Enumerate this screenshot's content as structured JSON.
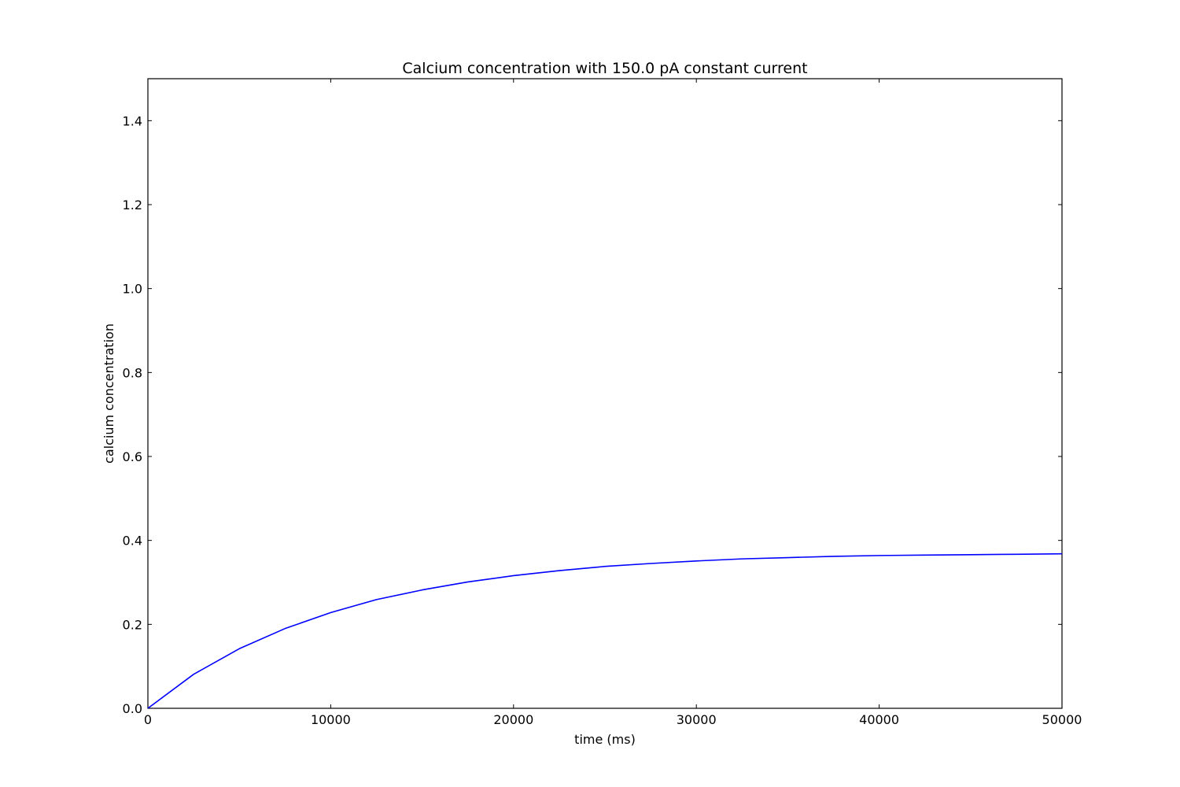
{
  "chart_data": {
    "type": "line",
    "title": "Calcium concentration with 150.0 pA constant current",
    "xlabel": "time (ms)",
    "ylabel": "calcium concentration",
    "xlim": [
      0,
      50000
    ],
    "ylim": [
      0,
      1.5
    ],
    "x_ticks": [
      0,
      10000,
      20000,
      30000,
      40000,
      50000
    ],
    "x_tick_labels": [
      "0",
      "10000",
      "20000",
      "30000",
      "40000",
      "50000"
    ],
    "y_ticks": [
      0,
      0.2,
      0.4,
      0.6,
      0.8,
      1.0,
      1.2,
      1.4
    ],
    "y_tick_labels": [
      "0.0",
      "0.2",
      "0.4",
      "0.6",
      "0.8",
      "1.0",
      "1.2",
      "1.4"
    ],
    "grid": false,
    "series": [
      {
        "color": "#0000ff",
        "x": [
          0,
          2500,
          5000,
          7500,
          10000,
          12500,
          15000,
          17500,
          20000,
          22500,
          25000,
          27500,
          30000,
          32500,
          35000,
          37500,
          40000,
          42500,
          45000,
          47500,
          50000
        ],
        "y": [
          0,
          0.081,
          0.142,
          0.19,
          0.228,
          0.259,
          0.282,
          0.301,
          0.316,
          0.328,
          0.338,
          0.345,
          0.351,
          0.356,
          0.359,
          0.362,
          0.364,
          0.365,
          0.366,
          0.367,
          0.368
        ]
      }
    ]
  }
}
